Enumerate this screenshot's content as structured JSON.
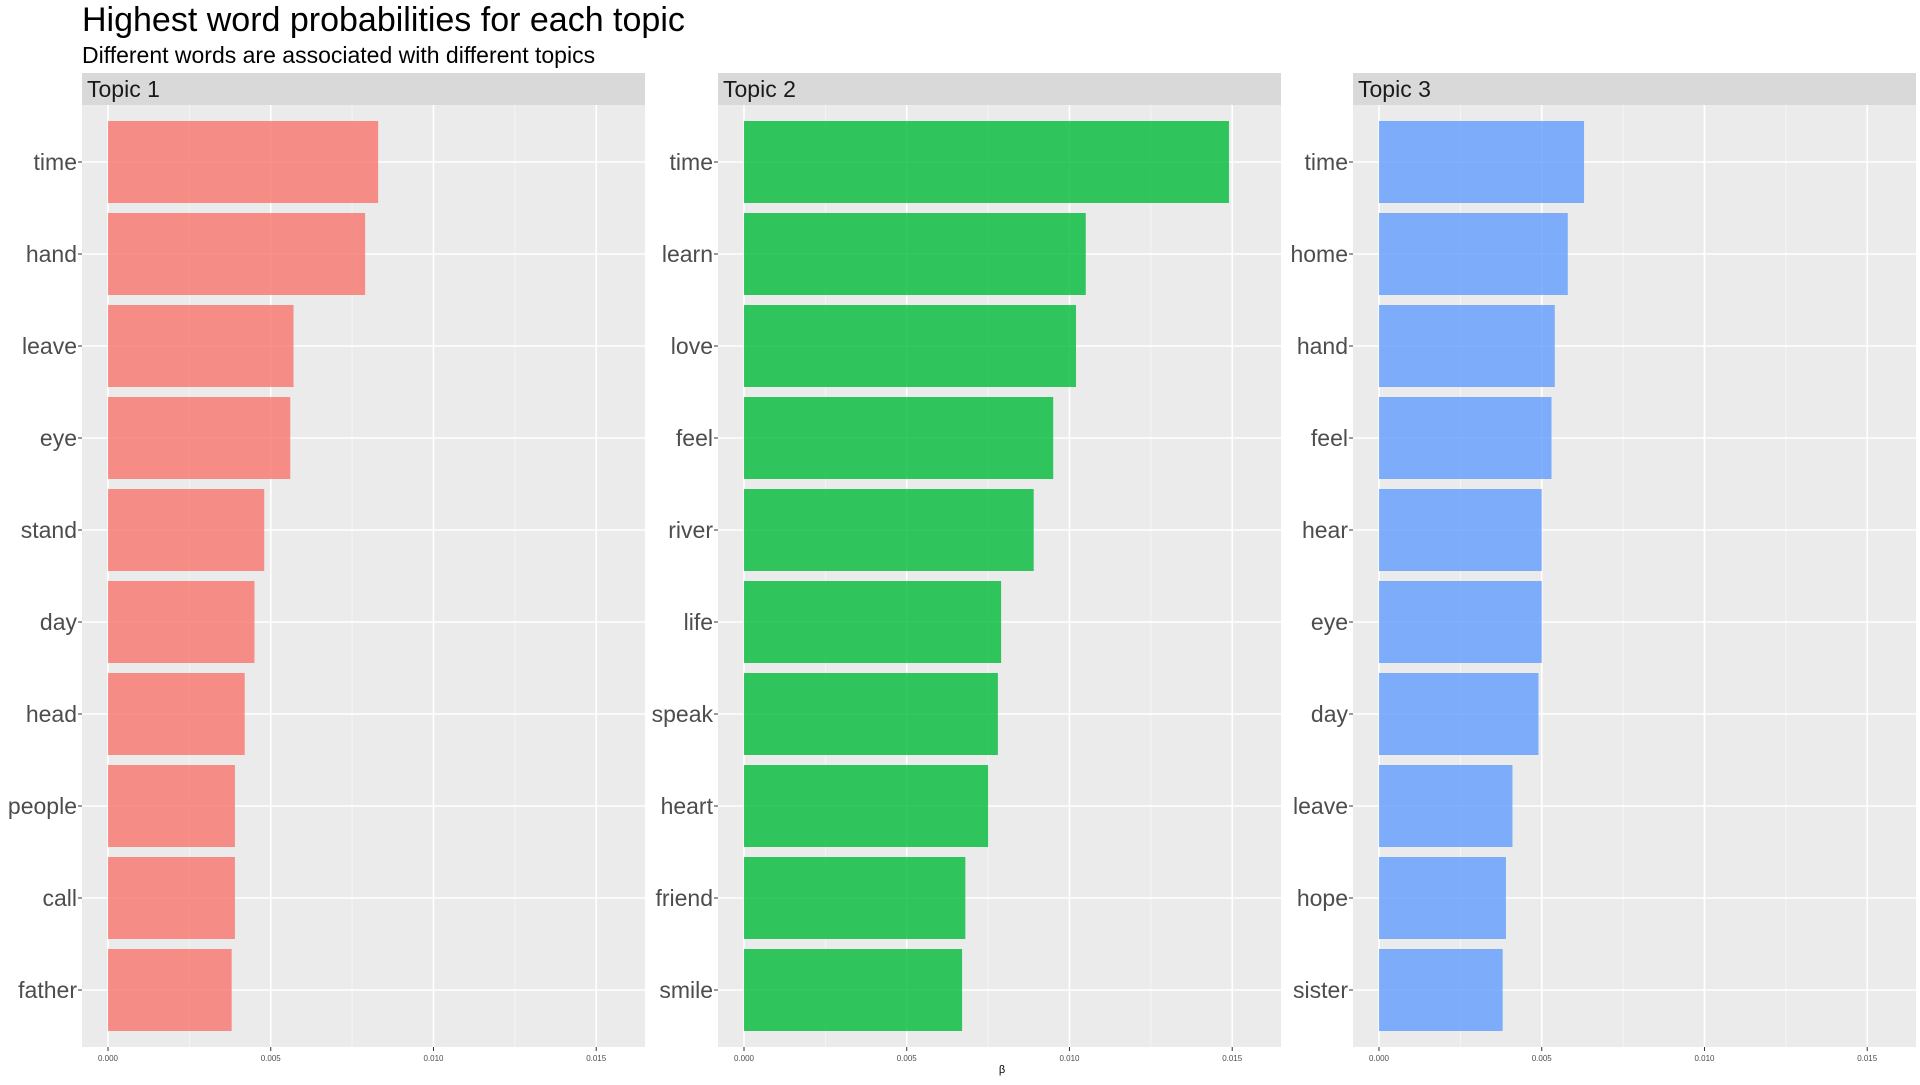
{
  "chart_data": {
    "type": "bar",
    "orientation": "horizontal",
    "title": "Highest word probabilities for each topic",
    "subtitle": "Different words are associated with different topics",
    "xlabel": "β",
    "ylabel": "",
    "xlim": [
      0,
      0.0157
    ],
    "x_ticks": [
      0,
      0.005,
      0.01,
      0.015
    ],
    "x_tick_labels": [
      "0.000",
      "0.005",
      "0.010",
      "0.015"
    ],
    "grid": true,
    "legend": "none",
    "panels": [
      {
        "name": "Topic 1",
        "color": "#F8766D",
        "categories": [
          "time",
          "hand",
          "leave",
          "eye",
          "stand",
          "day",
          "head",
          "people",
          "call",
          "father"
        ],
        "values": [
          0.0083,
          0.0079,
          0.0057,
          0.0056,
          0.0048,
          0.0045,
          0.0042,
          0.0039,
          0.0039,
          0.0038
        ]
      },
      {
        "name": "Topic 2",
        "color": "#00BA38",
        "categories": [
          "time",
          "learn",
          "love",
          "feel",
          "river",
          "life",
          "speak",
          "heart",
          "friend",
          "smile"
        ],
        "values": [
          0.0149,
          0.0105,
          0.0102,
          0.0095,
          0.0089,
          0.0079,
          0.0078,
          0.0075,
          0.0068,
          0.0067
        ]
      },
      {
        "name": "Topic 3",
        "color": "#619CFF",
        "categories": [
          "time",
          "home",
          "hand",
          "feel",
          "hear",
          "eye",
          "day",
          "leave",
          "hope",
          "sister"
        ],
        "values": [
          0.0063,
          0.0058,
          0.0054,
          0.0053,
          0.005,
          0.005,
          0.0049,
          0.0041,
          0.0039,
          0.0038
        ]
      }
    ]
  }
}
